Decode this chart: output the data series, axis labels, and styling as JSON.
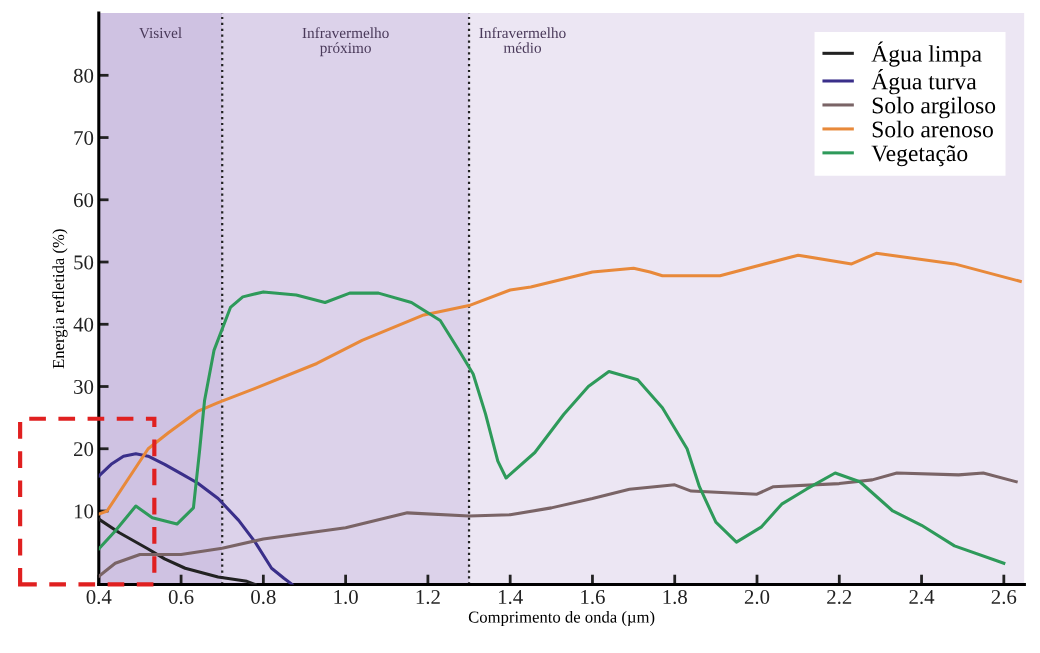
{
  "chart_data": {
    "type": "line",
    "xlabel": "Comprimento de onda (µm)",
    "ylabel": "Energia refletida (%)",
    "xlim": [
      0.4,
      2.65
    ],
    "ylim": [
      -1.8,
      90
    ],
    "xticks": [
      0.4,
      0.6,
      0.8,
      {
        "value": 1,
        "label": "1.0"
      },
      1.2,
      1.4,
      1.6,
      1.8,
      {
        "value": 2,
        "label": "2.0"
      },
      2.2,
      2.4,
      2.6
    ],
    "yticks": [
      10,
      20,
      30,
      40,
      50,
      60,
      70,
      80
    ],
    "grid": false,
    "legend": "top right",
    "marker": "none",
    "line_style": "solid",
    "bands": [
      {
        "axis": "x",
        "from": 0.4,
        "to": 0.7,
        "label": "Visivel",
        "color": "#cfc2e2"
      },
      {
        "axis": "x",
        "from": 0.7,
        "to": 1.3,
        "label": "Infravermelho\npróximo",
        "color": "#dcd2ea"
      },
      {
        "axis": "x",
        "from": 1.3,
        "to": 2.65,
        "label": "Infravermelho\nmédio",
        "color": "#ece6f3"
      }
    ],
    "ref_lines": [
      {
        "axis": "x",
        "value": 0.7,
        "label": null,
        "color": "#222222",
        "line_style": "dotted"
      },
      {
        "axis": "x",
        "value": 1.3,
        "label": null,
        "color": "#222222",
        "line_style": "dotted"
      }
    ],
    "series": [
      {
        "name": "Água limpa",
        "color": "#222222",
        "x": [
          0.4,
          0.45,
          0.52,
          0.56,
          0.61,
          0.69,
          0.76,
          0.78
        ],
        "values": [
          8.7,
          6.5,
          3.9,
          2.3,
          0.8,
          -0.6,
          -1.3,
          -1.8
        ]
      },
      {
        "name": "Água turva",
        "color": "#3a2f8a",
        "x": [
          0.4,
          0.43,
          0.46,
          0.49,
          0.52,
          0.56,
          0.6,
          0.64,
          0.69,
          0.74,
          0.78,
          0.82,
          0.85,
          0.87
        ],
        "values": [
          15.6,
          17.5,
          18.8,
          19.2,
          18.8,
          17.5,
          16,
          14.5,
          12,
          8.5,
          5,
          0.8,
          -0.8,
          -1.8
        ]
      },
      {
        "name": "Solo argiloso",
        "color": "#7a6466",
        "x": [
          0.4,
          0.44,
          0.5,
          0.6,
          0.7,
          0.8,
          1.0,
          1.15,
          1.3,
          1.4,
          1.5,
          1.6,
          1.69,
          1.8,
          1.84,
          2.0,
          2.04,
          2.2,
          2.28,
          2.34,
          2.49,
          2.55,
          2.63
        ],
        "values": [
          -0.5,
          1.6,
          3,
          3,
          4,
          5.5,
          7.3,
          9.7,
          9.2,
          9.4,
          10.5,
          12,
          13.5,
          14.2,
          13.2,
          12.7,
          13.9,
          14.4,
          15,
          16.1,
          15.8,
          16.1,
          14.7
        ]
      },
      {
        "name": "Solo arenoso",
        "color": "#e8893a",
        "x": [
          0.4,
          0.42,
          0.52,
          0.57,
          0.64,
          0.69,
          0.78,
          0.93,
          1.04,
          1.19,
          1.3,
          1.4,
          1.45,
          1.6,
          1.7,
          1.74,
          1.77,
          1.91,
          2.1,
          2.23,
          2.29,
          2.48,
          2.64
        ],
        "values": [
          9.5,
          10,
          20,
          22.6,
          26,
          27.4,
          29.7,
          33.7,
          37.4,
          41.5,
          43,
          45.5,
          46,
          48.4,
          49,
          48.4,
          47.8,
          47.8,
          51.1,
          49.7,
          51.4,
          49.7,
          46.9
        ]
      },
      {
        "name": "Vegetação",
        "color": "#2e9a5a",
        "x": [
          0.4,
          0.44,
          0.49,
          0.53,
          0.59,
          0.63,
          0.645,
          0.657,
          0.68,
          0.72,
          0.75,
          0.8,
          0.88,
          0.95,
          1.01,
          1.08,
          1.16,
          1.23,
          1.28,
          1.31,
          1.34,
          1.37,
          1.39,
          1.46,
          1.53,
          1.59,
          1.64,
          1.71,
          1.77,
          1.83,
          1.86,
          1.9,
          1.95,
          2.01,
          2.06,
          2.12,
          2.19,
          2.25,
          2.33,
          2.4,
          2.48,
          2.6
        ],
        "values": [
          3.9,
          6.8,
          10.8,
          8.9,
          7.9,
          10.5,
          19.7,
          27.7,
          35.8,
          42.7,
          44.4,
          45.2,
          44.7,
          43.5,
          45,
          45,
          43.5,
          40.6,
          35.3,
          32,
          25.6,
          18,
          15.3,
          19.4,
          25.5,
          30,
          32.4,
          31.1,
          26.6,
          20,
          13.9,
          8.2,
          5,
          7.4,
          11.1,
          13.5,
          16.1,
          14.7,
          10,
          7.7,
          4.4,
          1.6
        ]
      }
    ]
  }
}
